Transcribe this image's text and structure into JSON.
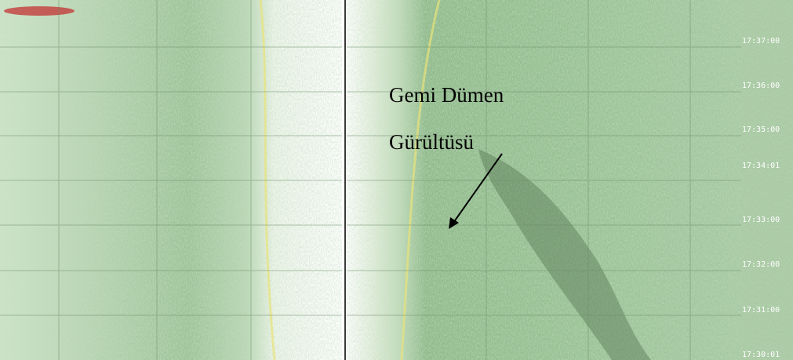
{
  "annotation": {
    "lines": [
      "Gemi Dümen",
      "Gürültüsü"
    ]
  },
  "timestamps": [
    "17:37:00",
    "17:36:00",
    "17:35:00",
    "17:34:01",
    "17:33:00",
    "17:32:00",
    "17:31:00",
    "17:30:01"
  ]
}
